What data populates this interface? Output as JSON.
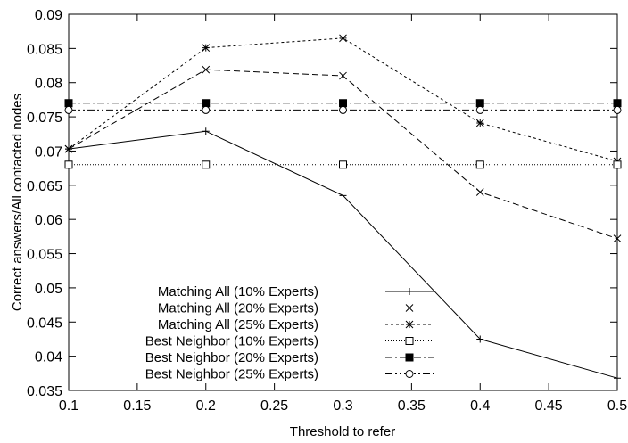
{
  "chart_data": {
    "type": "line",
    "title": "",
    "xlabel": "Threshold to refer",
    "ylabel": "Correct answers/All contacted nodes",
    "xlim": [
      0.1,
      0.5
    ],
    "ylim": [
      0.035,
      0.09
    ],
    "x_ticks": [
      "0.1",
      "0.15",
      "0.2",
      "0.25",
      "0.3",
      "0.35",
      "0.4",
      "0.45",
      "0.5"
    ],
    "y_ticks": [
      "0.035",
      "0.04",
      "0.045",
      "0.05",
      "0.055",
      "0.06",
      "0.065",
      "0.07",
      "0.075",
      "0.08",
      "0.085",
      "0.09"
    ],
    "grid": false,
    "legend_position": "bottom-left",
    "x": [
      0.1,
      0.2,
      0.3,
      0.4,
      0.5
    ],
    "series": [
      {
        "name": "Matching All (10% Experts)",
        "values": [
          0.0703,
          0.0729,
          0.0635,
          0.0425,
          0.0368
        ],
        "dash": "",
        "marker": "plus"
      },
      {
        "name": "Matching All (20% Experts)",
        "values": [
          0.0703,
          0.0819,
          0.081,
          0.064,
          0.0572
        ],
        "dash": "7,4",
        "marker": "x"
      },
      {
        "name": "Matching All (25% Experts)",
        "values": [
          0.0703,
          0.0851,
          0.0865,
          0.0741,
          0.0685
        ],
        "dash": "3,3",
        "marker": "star"
      },
      {
        "name": "Best Neighbor (10% Experts)",
        "values": [
          0.068,
          0.068,
          0.068,
          0.068,
          0.068
        ],
        "dash": "1,2",
        "marker": "square-open"
      },
      {
        "name": "Best Neighbor (20% Experts)",
        "values": [
          0.077,
          0.077,
          0.077,
          0.077,
          0.077
        ],
        "dash": "8,3,2,3",
        "marker": "square-filled"
      },
      {
        "name": "Best Neighbor (25% Experts)",
        "values": [
          0.076,
          0.076,
          0.076,
          0.076,
          0.076
        ],
        "dash": "8,3,2,3,2,3",
        "marker": "circle-open"
      }
    ]
  }
}
